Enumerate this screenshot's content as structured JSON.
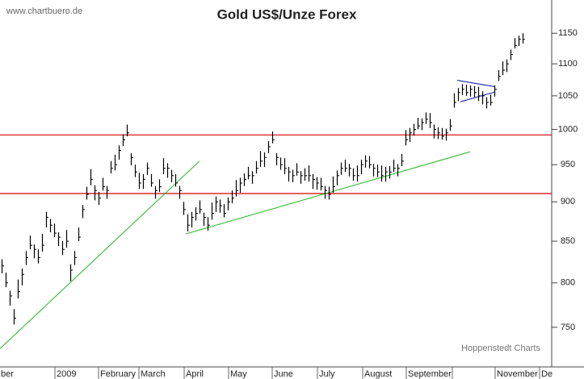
{
  "chart_data": {
    "type": "ohlc",
    "title": "Gold US$/Unze Forex",
    "source": "www.chartbuero.de",
    "credit": "Hoppenstedt Charts",
    "color": "#000000",
    "high": [
      828,
      812,
      791,
      770,
      804,
      817,
      838,
      857,
      846,
      840,
      859,
      887,
      878,
      872,
      861,
      850,
      864,
      822,
      838,
      867,
      896,
      920,
      944,
      922,
      913,
      932,
      921,
      955,
      964,
      977,
      993,
      1007,
      966,
      950,
      939,
      937,
      953,
      937,
      921,
      930,
      959,
      952,
      943,
      937,
      921,
      900,
      884,
      887,
      893,
      902,
      886,
      880,
      899,
      907,
      903,
      897,
      906,
      915,
      929,
      932,
      938,
      947,
      941,
      955,
      969,
      967,
      983,
      997,
      966,
      960,
      959,
      947,
      943,
      952,
      941,
      945,
      949,
      937,
      933,
      932,
      921,
      920,
      934,
      942,
      953,
      957,
      951,
      945,
      949,
      957,
      963,
      962,
      951,
      950,
      949,
      947,
      948,
      957,
      951,
      965,
      999,
      1002,
      1008,
      1017,
      1016,
      1025,
      1024,
      1007,
      1003,
      1002,
      1001,
      1015,
      1054,
      1062,
      1068,
      1067,
      1066,
      1065,
      1064,
      1057,
      1048,
      1052,
      1066,
      1090,
      1104,
      1107,
      1123,
      1142,
      1146,
      1150
    ],
    "low": [
      811,
      795,
      774,
      753,
      782,
      797,
      821,
      840,
      829,
      823,
      837,
      867,
      861,
      855,
      844,
      833,
      842,
      802,
      821,
      850,
      879,
      903,
      922,
      902,
      896,
      915,
      904,
      938,
      942,
      957,
      976,
      990,
      949,
      933,
      917,
      917,
      936,
      920,
      904,
      913,
      937,
      932,
      926,
      920,
      904,
      883,
      862,
      867,
      876,
      885,
      869,
      863,
      877,
      887,
      886,
      880,
      889,
      898,
      907,
      912,
      921,
      930,
      924,
      938,
      947,
      947,
      966,
      980,
      949,
      943,
      937,
      927,
      926,
      935,
      924,
      928,
      927,
      917,
      916,
      915,
      904,
      903,
      912,
      922,
      936,
      940,
      934,
      928,
      927,
      937,
      946,
      945,
      934,
      933,
      927,
      927,
      931,
      940,
      934,
      948,
      977,
      982,
      991,
      1000,
      999,
      1008,
      1002,
      987,
      986,
      985,
      984,
      998,
      1032,
      1042,
      1051,
      1050,
      1049,
      1048,
      1042,
      1037,
      1031,
      1035,
      1049,
      1073,
      1082,
      1087,
      1106,
      1125,
      1129,
      1133
    ],
    "close": [
      820,
      800,
      785,
      760,
      790,
      810,
      830,
      845,
      840,
      830,
      845,
      880,
      870,
      860,
      855,
      840,
      850,
      815,
      830,
      855,
      890,
      910,
      930,
      915,
      905,
      920,
      915,
      945,
      950,
      970,
      985,
      995,
      960,
      940,
      925,
      930,
      945,
      925,
      915,
      920,
      945,
      945,
      935,
      925,
      915,
      890,
      870,
      880,
      885,
      890,
      880,
      870,
      885,
      900,
      895,
      885,
      900,
      905,
      915,
      925,
      930,
      935,
      935,
      945,
      955,
      960,
      975,
      985,
      960,
      950,
      945,
      940,
      935,
      940,
      935,
      935,
      935,
      930,
      925,
      920,
      915,
      910,
      920,
      935,
      945,
      945,
      945,
      935,
      935,
      950,
      955,
      950,
      945,
      940,
      935,
      940,
      940,
      945,
      945,
      955,
      985,
      995,
      1000,
      1005,
      1010,
      1015,
      1010,
      1000,
      995,
      990,
      995,
      1005,
      1040,
      1055,
      1060,
      1055,
      1060,
      1055,
      1050,
      1050,
      1040,
      1040,
      1060,
      1080,
      1090,
      1100,
      1115,
      1130,
      1140,
      1140
    ],
    "xlim": [
      0,
      136.6
    ],
    "xticks": [
      {
        "value": -0.2,
        "label": "ber"
      },
      {
        "value": 13.6,
        "label": "2009"
      },
      {
        "value": 24.4,
        "label": "February"
      },
      {
        "value": 34.4,
        "label": "March"
      },
      {
        "value": 45.6,
        "label": "April"
      },
      {
        "value": 56.6,
        "label": "May"
      },
      {
        "value": 67.4,
        "label": "June"
      },
      {
        "value": 78.6,
        "label": "July"
      },
      {
        "value": 89.8,
        "label": "August"
      },
      {
        "value": 100.6,
        "label": "September"
      },
      {
        "value": 112,
        "label": null
      },
      {
        "value": 122.6,
        "label": "November"
      },
      {
        "value": 133.6,
        "label": "De"
      }
    ],
    "ylim": [
      708,
      1207
    ],
    "log": true,
    "yticks": [
      750,
      800,
      850,
      900,
      950,
      1000,
      1050,
      1100,
      1150
    ],
    "hlines": [
      {
        "value": 992,
        "color": "#d40000"
      },
      {
        "value": 911,
        "color": "#d40000"
      }
    ],
    "trendlines": [
      {
        "x": [
          0,
          49.4
        ],
        "y": [
          727,
          955
        ],
        "color": "#33bb33"
      },
      {
        "x": [
          46,
          116.4
        ],
        "y": [
          859,
          968
        ],
        "color": "#33bb33"
      },
      {
        "x": [
          113.2,
          122.6
        ],
        "y": [
          1074,
          1064
        ],
        "color": "#2222aa"
      },
      {
        "x": [
          114,
          122.6
        ],
        "y": [
          1041,
          1056
        ],
        "color": "#2222aa"
      }
    ]
  }
}
